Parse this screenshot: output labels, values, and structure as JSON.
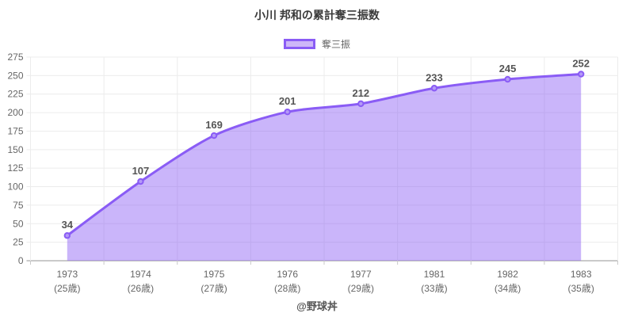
{
  "title": "小川 邦和の累計奪三振数",
  "legend": {
    "label": "奪三振"
  },
  "footer": "@野球丼",
  "colors": {
    "accent": "#8a5cf5",
    "area_fill": "rgba(138,92,245,0.45)",
    "marker_fill": "#b49af7",
    "grid": "#ececec",
    "zero_line": "#b8b8b8",
    "tick_mark": "#c9c9c9",
    "tick_text": "#666666",
    "data_label": "#555555"
  },
  "chart_data": {
    "type": "area",
    "title": "小川 邦和の累計奪三振数",
    "legend_entries": [
      "奪三振"
    ],
    "legend_position": "top",
    "categories": [
      "1973",
      "1974",
      "1975",
      "1976",
      "1977",
      "1981",
      "1982",
      "1983"
    ],
    "category_sublabels": [
      "(25歳)",
      "(26歳)",
      "(27歳)",
      "(28歳)",
      "(29歳)",
      "(33歳)",
      "(34歳)",
      "(35歳)"
    ],
    "values": [
      34,
      107,
      169,
      201,
      212,
      233,
      245,
      252
    ],
    "series_name": "奪三振",
    "xlabel": "",
    "ylabel": "",
    "ylim": [
      0,
      275
    ],
    "y_ticks": [
      0,
      25,
      50,
      75,
      100,
      125,
      150,
      175,
      200,
      225,
      250,
      275
    ],
    "grid": true,
    "smooth": true,
    "data_labels_shown": true
  }
}
